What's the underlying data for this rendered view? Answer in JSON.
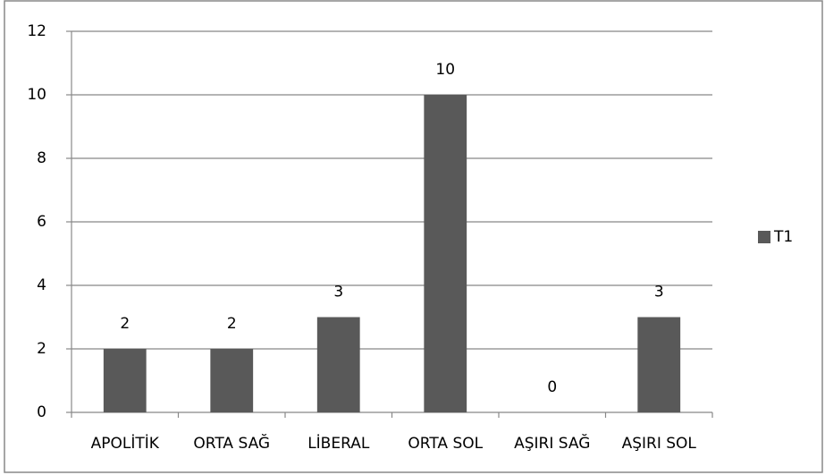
{
  "chart_data": {
    "type": "bar",
    "categories": [
      "APOLİTİK",
      "ORTA SAĞ",
      "LİBERAL",
      "ORTA SOL",
      "AŞIRI SAĞ",
      "AŞIRI SOL"
    ],
    "series": [
      {
        "name": "T1",
        "color": "#595959",
        "values": [
          2,
          2,
          3,
          10,
          0,
          3
        ]
      }
    ],
    "ylim": [
      0,
      12
    ],
    "yticks": [
      0,
      2,
      4,
      6,
      8,
      10,
      12
    ],
    "grid": true,
    "legend": "right"
  }
}
